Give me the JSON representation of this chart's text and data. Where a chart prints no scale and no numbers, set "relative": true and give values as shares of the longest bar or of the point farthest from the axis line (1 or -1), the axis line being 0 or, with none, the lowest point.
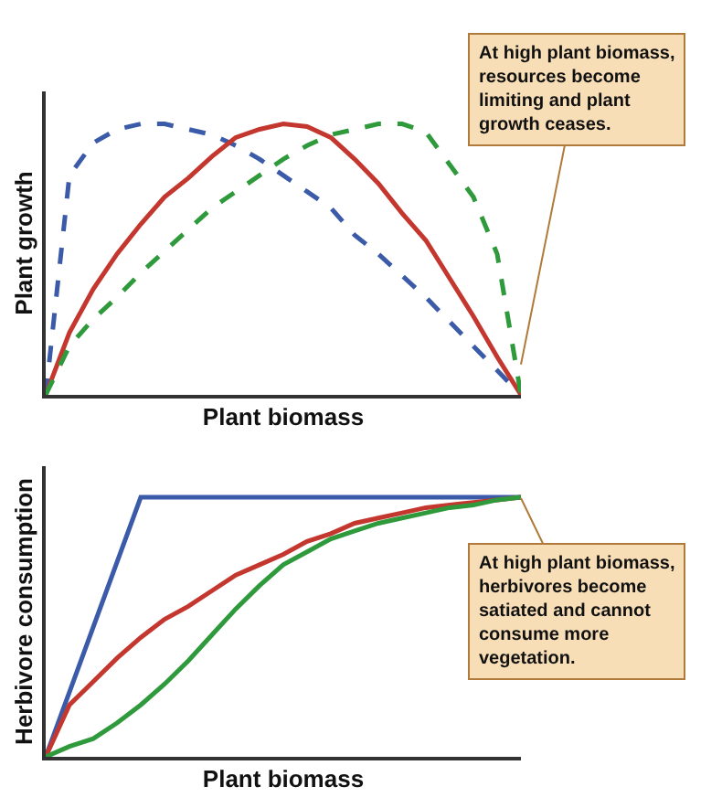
{
  "chart_data": [
    {
      "type": "line",
      "relative": true,
      "xlabel": "Plant biomass",
      "ylabel": "Plant growth",
      "categories": [
        null,
        null,
        null,
        null,
        null,
        null,
        null,
        null,
        null,
        null,
        null,
        null,
        null,
        null,
        null,
        null,
        null,
        null,
        null,
        null,
        null
      ],
      "series": [
        {
          "color": "#3b5ba9",
          "line_style": "dashed",
          "values": [
            0,
            0.81,
            0.93,
            0.98,
            1,
            1,
            0.98,
            0.96,
            0.92,
            0.87,
            0.81,
            0.75,
            0.69,
            0.59,
            0.52,
            0.44,
            0.36,
            0.27,
            0.18,
            0.09,
            0
          ]
        },
        {
          "color": "#c4372f",
          "line_style": "solid",
          "values": [
            0,
            0.23,
            0.39,
            0.52,
            0.63,
            0.73,
            0.8,
            0.88,
            0.95,
            0.98,
            1,
            0.99,
            0.95,
            0.87,
            0.78,
            0.67,
            0.57,
            0.43,
            0.29,
            0.14,
            0
          ]
        },
        {
          "color": "#2f9a3c",
          "line_style": "dashed",
          "values": [
            0,
            0.18,
            0.28,
            0.36,
            0.45,
            0.53,
            0.61,
            0.69,
            0.75,
            0.81,
            0.87,
            0.92,
            0.96,
            0.98,
            1,
            1,
            0.97,
            0.85,
            0.73,
            0.52,
            0
          ]
        }
      ],
      "annotations": [
        "At high plant biomass, resources become limiting and plant growth ceases."
      ]
    },
    {
      "type": "line",
      "relative": true,
      "xlabel": "Plant biomass",
      "ylabel": "Herbivore consumption",
      "categories": [
        null,
        null,
        null,
        null,
        null,
        null,
        null,
        null,
        null,
        null,
        null,
        null,
        null,
        null,
        null,
        null,
        null,
        null,
        null,
        null,
        null
      ],
      "series": [
        {
          "color": "#3b5ba9",
          "line_style": "solid",
          "values": [
            0,
            0.25,
            0.5,
            0.75,
            1,
            1,
            1,
            1,
            1,
            1,
            1,
            1,
            1,
            1,
            1,
            1,
            1,
            1,
            1,
            1,
            1
          ]
        },
        {
          "color": "#c4372f",
          "line_style": "solid",
          "values": [
            0,
            0.2,
            0.29,
            0.38,
            0.46,
            0.53,
            0.58,
            0.64,
            0.7,
            0.74,
            0.78,
            0.83,
            0.86,
            0.9,
            0.92,
            0.94,
            0.96,
            0.97,
            0.98,
            0.99,
            1
          ]
        },
        {
          "color": "#2f9a3c",
          "line_style": "solid",
          "values": [
            0,
            0.04,
            0.07,
            0.13,
            0.2,
            0.28,
            0.37,
            0.47,
            0.57,
            0.66,
            0.74,
            0.79,
            0.84,
            0.87,
            0.9,
            0.92,
            0.94,
            0.96,
            0.97,
            0.99,
            1
          ]
        }
      ],
      "annotations": [
        "At high plant biomass, herbivores become satiated and cannot consume more vegetation."
      ]
    }
  ]
}
